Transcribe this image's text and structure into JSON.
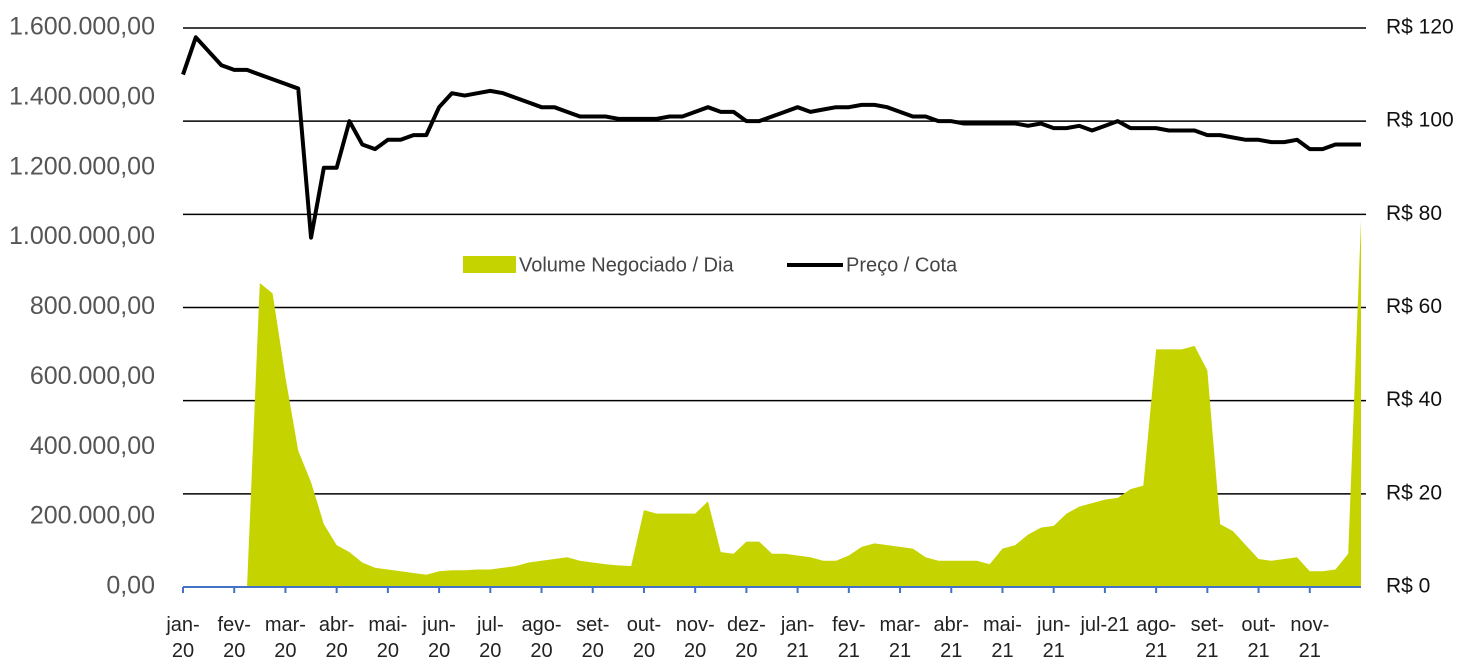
{
  "chart_data": {
    "type": "area_line",
    "categories": [
      "jan-\n20",
      null,
      null,
      null,
      "fev-\n20",
      null,
      null,
      null,
      "mar-\n20",
      null,
      null,
      null,
      "abr-\n20",
      null,
      null,
      null,
      "mai-\n20",
      null,
      null,
      null,
      "jun-\n20",
      null,
      null,
      null,
      "jul-\n20",
      null,
      null,
      null,
      "ago-\n20",
      null,
      null,
      null,
      "set-\n20",
      null,
      null,
      null,
      "out-\n20",
      null,
      null,
      null,
      "nov-\n20",
      null,
      null,
      null,
      "dez-\n20",
      null,
      null,
      null,
      "jan-\n21",
      null,
      null,
      null,
      "fev-\n21",
      null,
      null,
      null,
      "mar-\n21",
      null,
      null,
      null,
      "abr-\n21",
      null,
      null,
      null,
      "mai-\n21",
      null,
      null,
      null,
      "jun-\n21",
      null,
      null,
      null,
      "jul-21",
      null,
      null,
      null,
      "ago-\n21",
      null,
      null,
      null,
      "set-\n21",
      null,
      null,
      null,
      "out-\n21",
      null,
      null,
      null,
      "nov-\n21",
      null,
      null,
      null,
      null
    ],
    "series": [
      {
        "name": "Volume Negociado / Dia",
        "color": "#c5d400",
        "axis": "y",
        "values": [
          0,
          0,
          0,
          0,
          0,
          0,
          870000,
          840000,
          600000,
          390000,
          300000,
          180000,
          120000,
          100000,
          70000,
          55000,
          50000,
          45000,
          40000,
          35000,
          45000,
          48000,
          48000,
          50000,
          50000,
          55000,
          60000,
          70000,
          75000,
          80000,
          85000,
          75000,
          70000,
          65000,
          62000,
          60000,
          220000,
          210000,
          210000,
          210000,
          210000,
          245000,
          100000,
          95000,
          130000,
          130000,
          95000,
          95000,
          90000,
          85000,
          75000,
          75000,
          90000,
          115000,
          125000,
          120000,
          115000,
          110000,
          85000,
          75000,
          75000,
          75000,
          75000,
          65000,
          110000,
          120000,
          150000,
          170000,
          175000,
          210000,
          230000,
          240000,
          250000,
          255000,
          280000,
          290000,
          680000,
          680000,
          680000,
          690000,
          620000,
          180000,
          160000,
          120000,
          80000,
          75000,
          80000,
          85000,
          45000,
          45000,
          50000,
          95000,
          1050000
        ]
      },
      {
        "name": "Preço / Cota",
        "color": "#000000",
        "axis": "y2",
        "values": [
          110,
          118,
          115,
          112,
          111,
          111,
          110,
          109,
          108,
          107,
          75,
          90,
          90,
          100,
          95,
          94,
          96,
          96,
          97,
          97,
          103,
          106,
          105.5,
          106,
          106.5,
          106,
          105,
          104,
          103,
          103,
          102,
          101,
          101,
          101,
          100.5,
          100.5,
          100.5,
          100.5,
          101,
          101,
          102,
          103,
          102,
          102,
          100,
          100,
          101,
          102,
          103,
          102,
          102.5,
          103,
          103,
          103.5,
          103.5,
          103,
          102,
          101,
          101,
          100,
          100,
          99.5,
          99.5,
          99.5,
          99.5,
          99.5,
          99,
          99.5,
          98.5,
          98.5,
          99,
          98,
          99,
          100,
          98.5,
          98.5,
          98.5,
          98,
          98,
          98,
          97,
          97,
          96.5,
          96,
          96,
          95.5,
          95.5,
          96,
          94,
          94,
          95,
          95,
          95
        ]
      }
    ],
    "ylim": [
      0,
      1600000
    ],
    "yticks": [
      {
        "value": 0,
        "label": "0,00"
      },
      {
        "value": 200000,
        "label": "200.000,00"
      },
      {
        "value": 400000,
        "label": "400.000,00"
      },
      {
        "value": 600000,
        "label": "600.000,00"
      },
      {
        "value": 800000,
        "label": "800.000,00"
      },
      {
        "value": 1000000,
        "label": "1.000.000,00"
      },
      {
        "value": 1200000,
        "label": "1.200.000,00"
      },
      {
        "value": 1400000,
        "label": "1.400.000,00"
      },
      {
        "value": 1600000,
        "label": "1.600.000,00"
      }
    ],
    "y2lim": [
      0,
      120
    ],
    "y2ticks": [
      {
        "value": 0,
        "label": "R$ 0"
      },
      {
        "value": 20,
        "label": "R$ 20"
      },
      {
        "value": 40,
        "label": "R$ 40"
      },
      {
        "value": 60,
        "label": "R$ 60"
      },
      {
        "value": 80,
        "label": "R$ 80"
      },
      {
        "value": 100,
        "label": "R$ 100"
      },
      {
        "value": 120,
        "label": "R$ 120"
      }
    ],
    "grid": true,
    "legend": "center"
  }
}
